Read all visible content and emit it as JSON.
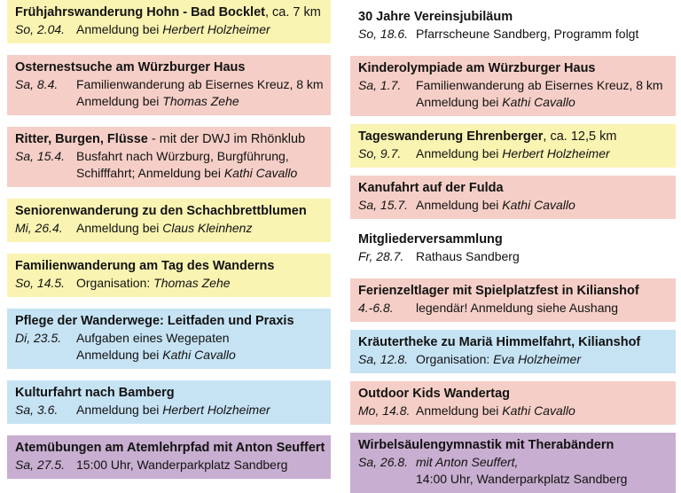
{
  "document_type": "Veranstaltungsprogramm Wanderverein",
  "palette": {
    "yellow": "#FAF4B2",
    "pink": "#F5CFC7",
    "blue": "#C6E3F4",
    "purple": "#C8AED0",
    "white": "transparent",
    "text": "#121212",
    "page_background": "#FFFFFF"
  },
  "columns": {
    "left": [
      {
        "color": "yellow",
        "title_bold": "Frühjahrswanderung Hohn - Bad Bocklet",
        "title_rest": ", ca. 7 km",
        "date": "So, 2.04.",
        "details": [
          [
            {
              "t": "Anmeldung bei ",
              "i": false
            },
            {
              "t": "Herbert Holzheimer",
              "i": true
            }
          ]
        ]
      },
      {
        "color": "pink",
        "title_bold": "Osternestsuche am Würzburger Haus",
        "title_rest": "",
        "date": "Sa, 8.4.",
        "details": [
          [
            {
              "t": "Familienwanderung ab Eisernes Kreuz, 8 km",
              "i": false
            }
          ],
          [
            {
              "t": "Anmeldung bei ",
              "i": false
            },
            {
              "t": "Thomas Zehe",
              "i": true
            }
          ]
        ]
      },
      {
        "color": "pink",
        "title_bold": "Ritter, Burgen, Flüsse",
        "title_rest": " - mit der DWJ im Rhönklub",
        "date": "Sa, 15.4.",
        "details": [
          [
            {
              "t": "Busfahrt nach Würzburg, Burgführung,",
              "i": false
            }
          ],
          [
            {
              "t": "Schifffahrt; Anmeldung bei ",
              "i": false
            },
            {
              "t": "Kathi Cavallo",
              "i": true
            }
          ]
        ]
      },
      {
        "color": "yellow",
        "title_bold": "Seniorenwanderung zu den Schachbrettblumen",
        "title_rest": "",
        "date": "Mi, 26.4.",
        "details": [
          [
            {
              "t": "Anmeldung bei ",
              "i": false
            },
            {
              "t": "Claus Kleinhenz",
              "i": true
            }
          ]
        ]
      },
      {
        "color": "yellow",
        "title_bold": "Familienwanderung am Tag des Wanderns",
        "title_rest": "",
        "date": "So, 14.5.",
        "details": [
          [
            {
              "t": "Organisation: ",
              "i": false
            },
            {
              "t": "Thomas Zehe",
              "i": true
            }
          ]
        ]
      },
      {
        "color": "blue",
        "title_bold": "Pflege der Wanderwege: Leitfaden und Praxis",
        "title_rest": "",
        "date": "Di, 23.5.",
        "details": [
          [
            {
              "t": "Aufgaben eines Wegepaten",
              "i": false
            }
          ],
          [
            {
              "t": "Anmeldung bei ",
              "i": false
            },
            {
              "t": "Kathi Cavallo",
              "i": true
            }
          ]
        ]
      },
      {
        "color": "blue",
        "title_bold": "Kulturfahrt nach Bamberg",
        "title_rest": "",
        "date": "Sa, 3.6.",
        "details": [
          [
            {
              "t": "Anmeldung bei ",
              "i": false
            },
            {
              "t": "Herbert Holzheimer",
              "i": true
            }
          ]
        ]
      },
      {
        "color": "purple",
        "title_bold": "Atemübungen am Atemlehrpfad mit Anton Seuffert",
        "title_rest": "",
        "date": "Sa, 27.5.",
        "details": [
          [
            {
              "t": "15:00 Uhr, Wanderparkplatz Sandberg",
              "i": false
            }
          ]
        ]
      }
    ],
    "right": [
      {
        "color": "white",
        "title_bold": "30 Jahre Vereinsjubiläum",
        "title_rest": "",
        "date": "So, 18.6.",
        "details": [
          [
            {
              "t": "Pfarrscheune Sandberg, Programm folgt",
              "i": false
            }
          ]
        ]
      },
      {
        "color": "pink",
        "title_bold": "Kinderolympiade am Würzburger Haus",
        "title_rest": "",
        "date": "Sa, 1.7.",
        "details": [
          [
            {
              "t": "Familienwanderung ab Eisernes Kreuz, 8 km",
              "i": false
            }
          ],
          [
            {
              "t": "Anmeldung bei ",
              "i": false
            },
            {
              "t": "Kathi Cavallo",
              "i": true
            }
          ]
        ]
      },
      {
        "color": "yellow",
        "title_bold": "Tageswanderung Ehrenberger",
        "title_rest": ", ca. 12,5 km",
        "date": "So, 9.7.",
        "details": [
          [
            {
              "t": "Anmeldung bei ",
              "i": false
            },
            {
              "t": "Herbert Holzheimer",
              "i": true
            }
          ]
        ]
      },
      {
        "color": "pink",
        "title_bold": "Kanufahrt auf der Fulda",
        "title_rest": "",
        "date": "Sa, 15.7.",
        "details": [
          [
            {
              "t": "Anmeldung bei ",
              "i": false
            },
            {
              "t": "Kathi Cavallo",
              "i": true
            }
          ]
        ]
      },
      {
        "color": "white",
        "title_bold": "Mitgliederversammlung",
        "title_rest": "",
        "date": "Fr, 28.7.",
        "details": [
          [
            {
              "t": "Rathaus Sandberg",
              "i": false
            }
          ]
        ]
      },
      {
        "color": "pink",
        "title_bold": "Ferienzeltlager mit Spielplatzfest in Kilianshof",
        "title_rest": "",
        "date": "4.-6.8.",
        "details": [
          [
            {
              "t": "legendär! Anmeldung siehe Aushang",
              "i": false
            }
          ]
        ]
      },
      {
        "color": "blue",
        "title_bold": "Kräutertheke zu Mariä Himmelfahrt, Kilianshof",
        "title_rest": "",
        "date": "Sa, 12.8.",
        "details": [
          [
            {
              "t": "Organisation: ",
              "i": false
            },
            {
              "t": "Eva Holzheimer",
              "i": true
            }
          ]
        ]
      },
      {
        "color": "pink",
        "title_bold": "Outdoor Kids Wandertag",
        "title_rest": "",
        "date": "Mo, 14.8.",
        "details": [
          [
            {
              "t": "Anmeldung bei ",
              "i": false
            },
            {
              "t": "Kathi Cavallo",
              "i": true
            }
          ]
        ]
      },
      {
        "color": "purple",
        "title_bold": "Wirbelsäulengymnastik mit Therabändern",
        "title_rest": "",
        "date": "Sa, 26.8.",
        "details": [
          [
            {
              "t": "mit Anton Seuffert,",
              "i": true
            }
          ],
          [
            {
              "t": "14:00 Uhr, Wanderparkplatz Sandberg",
              "i": false
            }
          ]
        ]
      }
    ]
  }
}
